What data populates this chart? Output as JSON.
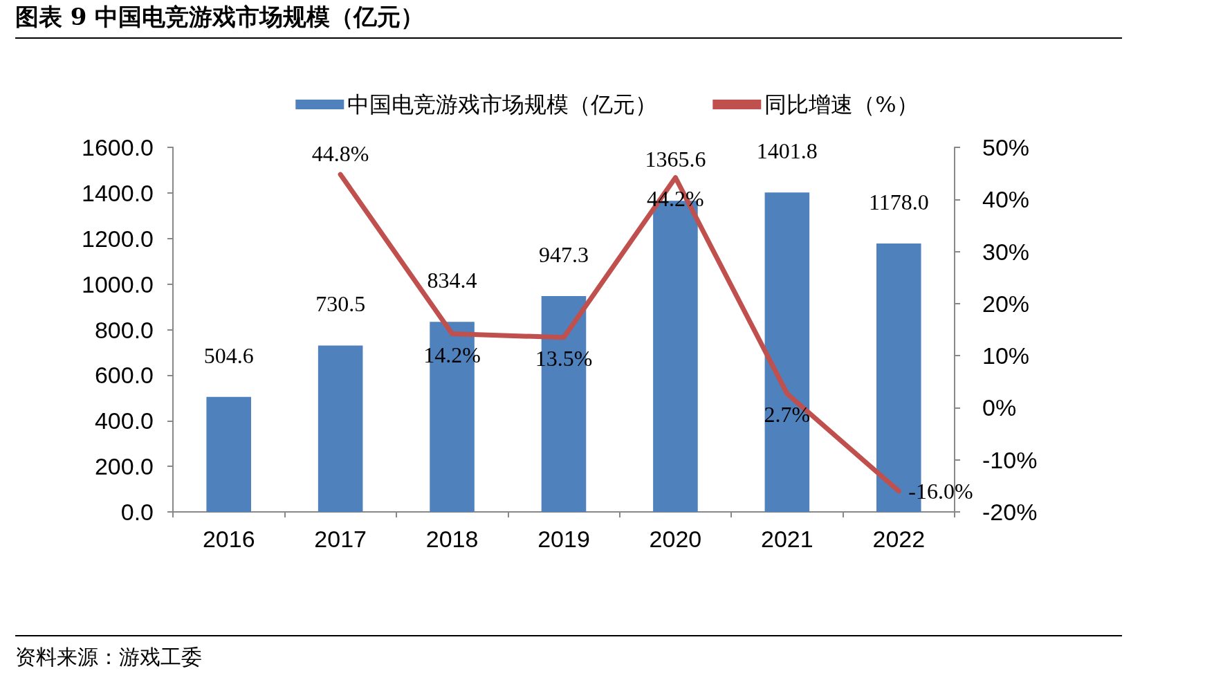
{
  "chart_data": {
    "type": "bar",
    "title": "图表 9 中国电竞游戏市场规模（亿元）",
    "categories": [
      "2016",
      "2017",
      "2018",
      "2019",
      "2020",
      "2021",
      "2022"
    ],
    "series": [
      {
        "name": "中国电竞游戏市场规模（亿元）",
        "color": "#4f81bd",
        "values": [
          504.6,
          730.5,
          834.4,
          947.3,
          1365.6,
          1401.8,
          1178.0
        ],
        "value_labels": [
          "504.6",
          "730.5",
          "834.4",
          "947.3",
          "1365.6",
          "1401.8",
          "1178.0"
        ]
      },
      {
        "name": "同比增速（%）",
        "type": "line",
        "axis": "y2",
        "color": "#c0504d",
        "values": [
          null,
          44.8,
          14.2,
          13.5,
          44.2,
          2.7,
          -16.0
        ],
        "value_labels": [
          null,
          "44.8%",
          "14.2%",
          "13.5%",
          "44.2%",
          "2.7%",
          "-16.0%"
        ]
      }
    ],
    "ylim": [
      0,
      1600
    ],
    "yticks": [
      {
        "value": 0,
        "label": "0.0"
      },
      {
        "value": 200,
        "label": "200.0"
      },
      {
        "value": 400,
        "label": "400.0"
      },
      {
        "value": 600,
        "label": "600.0"
      },
      {
        "value": 800,
        "label": "800.0"
      },
      {
        "value": 1000,
        "label": "1000.0"
      },
      {
        "value": 1200,
        "label": "1200.0"
      },
      {
        "value": 1400,
        "label": "1400.0"
      },
      {
        "value": 1600,
        "label": "1600.0"
      }
    ],
    "y2lim": [
      -20,
      50
    ],
    "y2ticks": [
      {
        "value": -20,
        "label": "-20%"
      },
      {
        "value": -10,
        "label": "-10%"
      },
      {
        "value": 0,
        "label": "0%"
      },
      {
        "value": 10,
        "label": "10%"
      },
      {
        "value": 20,
        "label": "20%"
      },
      {
        "value": 30,
        "label": "30%"
      },
      {
        "value": 40,
        "label": "40%"
      },
      {
        "value": 50,
        "label": "50%"
      }
    ],
    "grid": false,
    "legend": "top",
    "marker": "none",
    "line_style": "solid",
    "annotations": [
      "资料来源：游戏工委"
    ]
  }
}
